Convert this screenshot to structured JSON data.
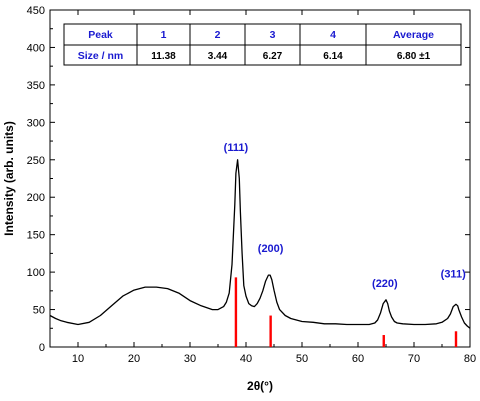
{
  "chart_data": {
    "type": "line",
    "xlabel": "2θ(°)",
    "ylabel": "Intensity (arb. units)",
    "xlim": [
      5,
      80
    ],
    "ylim": [
      0,
      450
    ],
    "x_ticks": [
      "10",
      "20",
      "30",
      "40",
      "50",
      "60",
      "70",
      "80"
    ],
    "y_ticks": [
      "0",
      "50",
      "100",
      "150",
      "200",
      "250",
      "300",
      "350",
      "400",
      "450"
    ],
    "grid": false,
    "series": [
      {
        "x": [
          5,
          6,
          7,
          8,
          10,
          12,
          14,
          16,
          18,
          20,
          22,
          24,
          26,
          28,
          30,
          32,
          34,
          35,
          36,
          36.5,
          37,
          37.5,
          38,
          38.2,
          38.5,
          38.8,
          39,
          39.3,
          39.6,
          40,
          40.5,
          41,
          41.5,
          42,
          42.5,
          43,
          43.5,
          44,
          44.3,
          44.6,
          45,
          45.5,
          46,
          47,
          48,
          49,
          50,
          52,
          54,
          56,
          58,
          60,
          62,
          63,
          63.5,
          64,
          64.5,
          65,
          65.3,
          65.6,
          66,
          66.5,
          67,
          68,
          70,
          72,
          74,
          75,
          76,
          76.5,
          77,
          77.5,
          77.8,
          78,
          78.5,
          79,
          79.5,
          80
        ],
        "y": [
          42,
          38,
          35,
          33,
          30,
          33,
          42,
          55,
          68,
          76,
          80,
          80,
          78,
          72,
          62,
          55,
          50,
          50,
          54,
          60,
          72,
          110,
          190,
          232,
          250,
          225,
          180,
          125,
          82,
          68,
          58,
          55,
          54,
          58,
          65,
          75,
          88,
          96,
          96,
          90,
          76,
          60,
          50,
          42,
          38,
          36,
          34,
          33,
          31,
          31,
          30,
          30,
          30,
          32,
          36,
          45,
          58,
          63,
          58,
          48,
          40,
          34,
          32,
          31,
          30,
          30,
          31,
          33,
          38,
          44,
          54,
          57,
          55,
          50,
          40,
          32,
          28,
          25
        ]
      }
    ],
    "reference_lines": [
      {
        "x": 38.2,
        "y": 93
      },
      {
        "x": 44.4,
        "y": 42
      },
      {
        "x": 64.6,
        "y": 16
      },
      {
        "x": 77.5,
        "y": 21
      }
    ],
    "annotations": [
      {
        "text": "(111)",
        "x": 38.2,
        "y": 262
      },
      {
        "text": "(200)",
        "x": 44.4,
        "y": 127
      },
      {
        "text": "(220)",
        "x": 64.8,
        "y": 80
      },
      {
        "text": "(311)",
        "x": 77.0,
        "y": 93
      }
    ],
    "table": {
      "header": [
        "Peak",
        "1",
        "2",
        "3",
        "4",
        "Average"
      ],
      "row": [
        "Size / nm",
        "11.38",
        "3.44",
        "6.27",
        "6.14",
        "6.80 ±1"
      ]
    },
    "colors": {
      "line": "#000000",
      "reference": "#ff0000",
      "peak_label": "#1a1ad0",
      "table_header": "#1a1ad0"
    }
  }
}
